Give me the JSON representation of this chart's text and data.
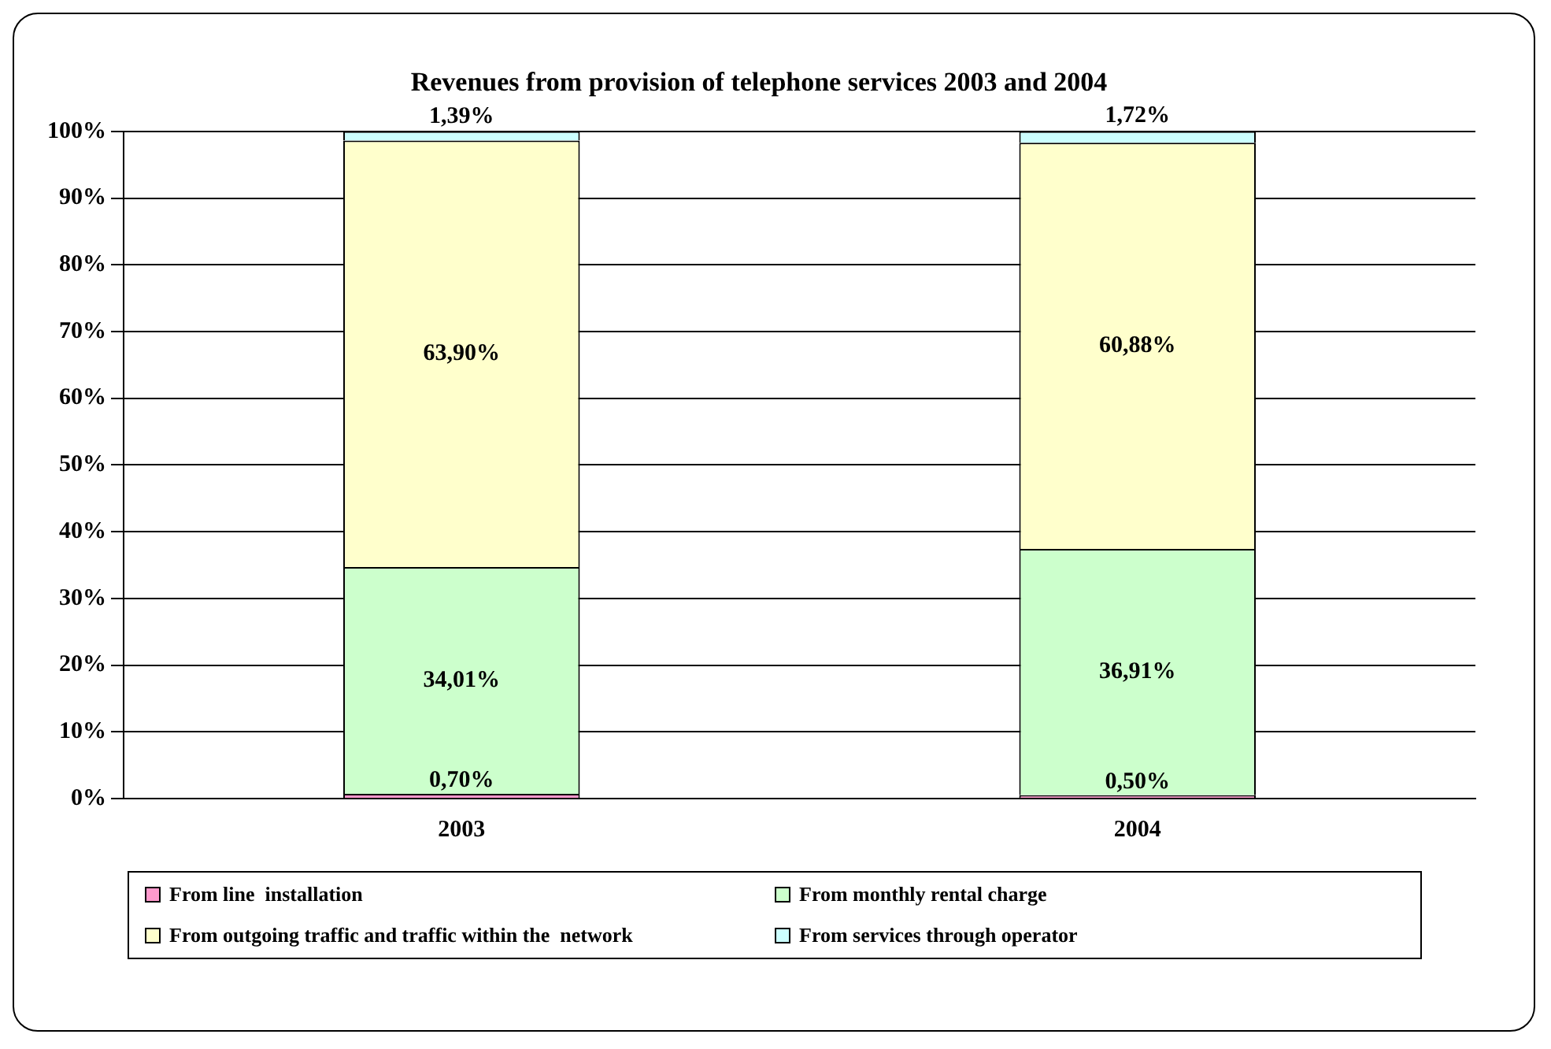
{
  "chart_data": {
    "type": "bar",
    "title": "Revenues from provision of telephone services 2003 and 2004",
    "categories": [
      "2003",
      "2004"
    ],
    "stacked": true,
    "ylim": [
      0,
      100
    ],
    "yticks": [
      {
        "value": 0,
        "label": "0%"
      },
      {
        "value": 10,
        "label": "10%"
      },
      {
        "value": 20,
        "label": "20%"
      },
      {
        "value": 30,
        "label": "30%"
      },
      {
        "value": 40,
        "label": "40%"
      },
      {
        "value": 50,
        "label": "50%"
      },
      {
        "value": 60,
        "label": "60%"
      },
      {
        "value": 70,
        "label": "70%"
      },
      {
        "value": 80,
        "label": "80%"
      },
      {
        "value": 90,
        "label": "90%"
      },
      {
        "value": 100,
        "label": "100%"
      }
    ],
    "grid": "y",
    "legend": "bottom",
    "series": [
      {
        "name": "From line  installation",
        "color": "#ff99cc",
        "values": [
          0.7,
          0.5
        ],
        "value_labels": [
          "0,70%",
          "0,50%"
        ]
      },
      {
        "name": "From monthly rental charge",
        "color": "#ccffcc",
        "values": [
          34.01,
          36.91
        ],
        "value_labels": [
          "34,01%",
          "36,91%"
        ]
      },
      {
        "name": "From outgoing traffic and traffic within the  network",
        "color": "#ffffcc",
        "values": [
          63.9,
          60.88
        ],
        "value_labels": [
          "63,90%",
          "60,88%"
        ]
      },
      {
        "name": "From services through operator",
        "color": "#ccffff",
        "values": [
          1.39,
          1.72
        ],
        "value_labels": [
          "1,39%",
          "1,72%"
        ]
      }
    ]
  }
}
